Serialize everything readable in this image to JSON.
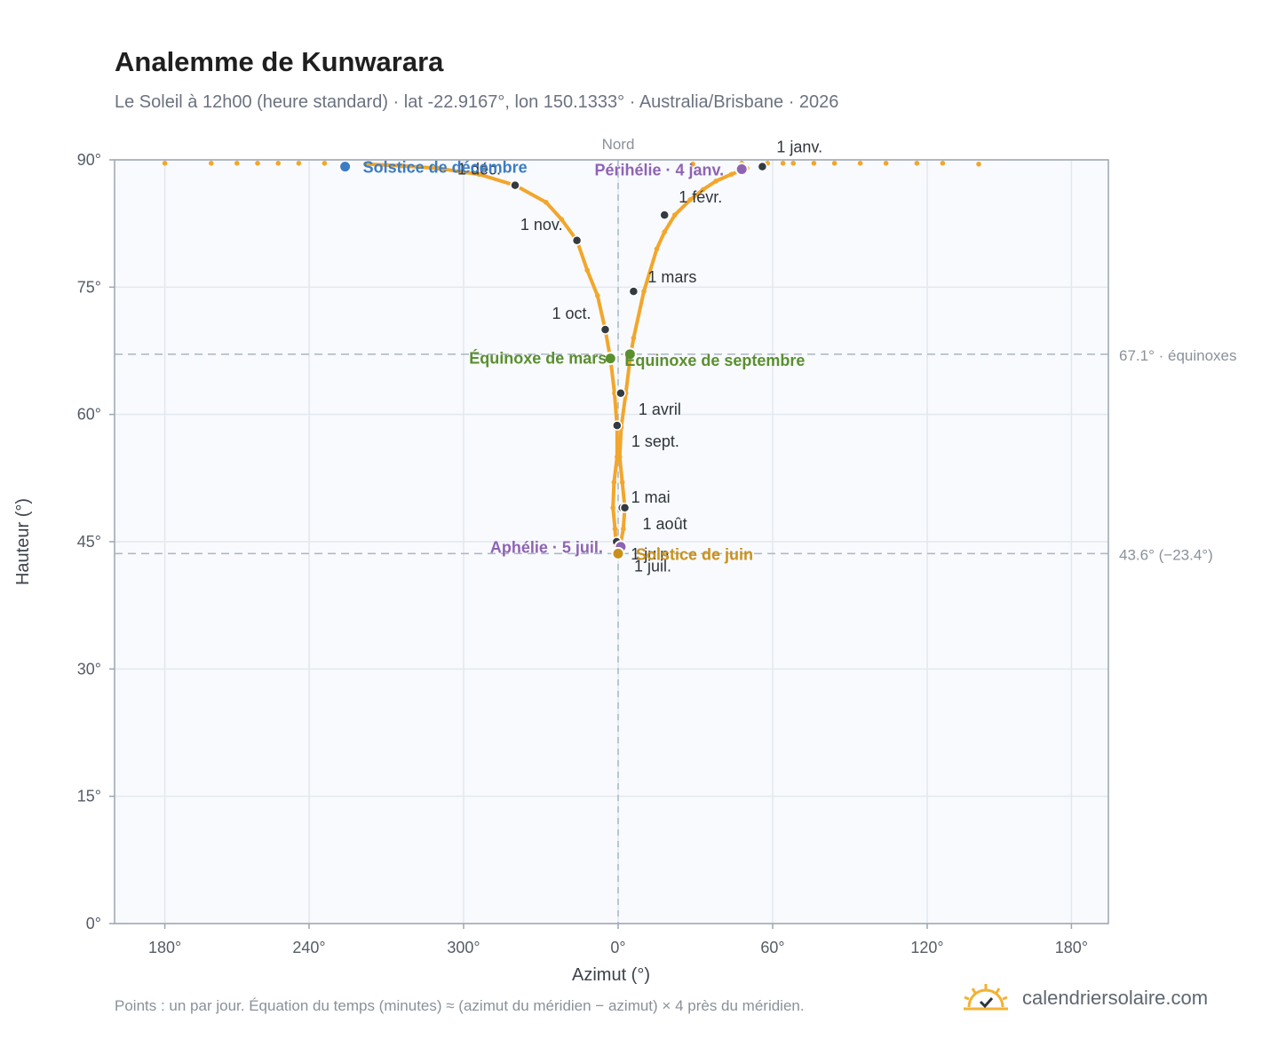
{
  "header": {
    "title": "Analemme de Kunwarara",
    "subtitle": "Le Soleil à 12h00 (heure standard) · lat -22.9167°, lon 150.1333° · Australia/Brisbane · 2026"
  },
  "footer": {
    "note": "Points : un par jour. Équation du temps (minutes) ≈ (azimut du méridien − azimut) × 4 près du méridien.",
    "brand": "calendriersolaire.com",
    "brand_icon": "sun-check-icon"
  },
  "colors": {
    "curve": "#f2a62b",
    "month_marker": "#343a40",
    "equinox": "#5a8f2e",
    "solstice_december": "#3b7cc4",
    "solstice_june": "#c9911b",
    "apsis": "#8e63b4",
    "plot_bg": "#f8fafd",
    "grid": "#e3e8ee",
    "reference_line": "#a9b7c4"
  },
  "chart_data": {
    "type": "scatter",
    "xlabel": "Azimut (°)",
    "ylabel": "Hauteur (°)",
    "xlim": [
      -90,
      90
    ],
    "ylim": [
      0,
      90
    ],
    "x_ticks": [
      {
        "value": -88,
        "label": "180°"
      },
      {
        "value": -60,
        "label": "240°"
      },
      {
        "value": -30,
        "label": "300°"
      },
      {
        "value": 0,
        "label": "0°"
      },
      {
        "value": 30,
        "label": "60°"
      },
      {
        "value": 60,
        "label": "120°"
      },
      {
        "value": 88,
        "label": "180°"
      }
    ],
    "y_ticks": [
      {
        "value": 0,
        "label": "0°"
      },
      {
        "value": 15,
        "label": "15°"
      },
      {
        "value": 30,
        "label": "30°"
      },
      {
        "value": 45,
        "label": "45°"
      },
      {
        "value": 60,
        "label": "60°"
      },
      {
        "value": 75,
        "label": "75°"
      },
      {
        "value": 90,
        "label": "90°"
      }
    ],
    "grid": true,
    "meridian": {
      "x": 0,
      "label": "Nord"
    },
    "reference_lines": [
      {
        "y": 67.1,
        "label": "67.1° · équinoxes"
      },
      {
        "y": 43.6,
        "label": "43.6° (−23.4°)"
      }
    ],
    "series": [
      {
        "points": [
          [
            14.5,
            89.5
          ],
          [
            24,
            89.6
          ],
          [
            29,
            89.6
          ],
          [
            32,
            89.6
          ],
          [
            34,
            89.6
          ],
          [
            38,
            89.6
          ],
          [
            42,
            89.6
          ],
          [
            47,
            89.6
          ],
          [
            52,
            89.6
          ],
          [
            58,
            89.6
          ],
          [
            63,
            89.6
          ],
          [
            70,
            89.5
          ],
          [
            25,
            89.0
          ],
          [
            22,
            88.3
          ],
          [
            19,
            87.5
          ],
          [
            16.5,
            86.5
          ],
          [
            14,
            85.3
          ],
          [
            11,
            83.5
          ],
          [
            9,
            81.5
          ],
          [
            7.5,
            79.5
          ],
          [
            5,
            74.5
          ],
          [
            3,
            69
          ],
          [
            2.3,
            66.5
          ],
          [
            1.5,
            62.5
          ],
          [
            0.6,
            58.5
          ],
          [
            0.3,
            55
          ],
          [
            0.8,
            52
          ],
          [
            1.3,
            49
          ],
          [
            1.0,
            46.5
          ],
          [
            0.4,
            44.5
          ],
          [
            0,
            43.6
          ],
          [
            -0.4,
            44.5
          ],
          [
            -0.6,
            46.5
          ],
          [
            -1,
            49
          ],
          [
            -0.8,
            52
          ],
          [
            -0.2,
            55
          ],
          [
            -0.2,
            58.5
          ],
          [
            -0.7,
            62.5
          ],
          [
            -1.5,
            66.6
          ],
          [
            -2.5,
            70
          ],
          [
            -4,
            74
          ],
          [
            -6,
            77
          ],
          [
            -8,
            80.5
          ],
          [
            -11,
            83
          ],
          [
            -14,
            85
          ],
          [
            -20,
            87
          ],
          [
            -27,
            88.3
          ],
          [
            -35,
            89
          ],
          [
            -42,
            89.3
          ],
          [
            -49,
            89.5
          ],
          [
            -53,
            89.6
          ],
          [
            -57,
            89.6
          ],
          [
            -62,
            89.6
          ],
          [
            -66,
            89.6
          ],
          [
            -70,
            89.6
          ],
          [
            -74,
            89.6
          ],
          [
            -79,
            89.6
          ],
          [
            -88,
            89.6
          ]
        ]
      }
    ],
    "month_markers": [
      {
        "label": "1 janv.",
        "x": 28,
        "y": 89.2
      },
      {
        "label": "1 févr.",
        "x": 9,
        "y": 83.5
      },
      {
        "label": "1 mars",
        "x": 3,
        "y": 74.5
      },
      {
        "label": "1 avril",
        "x": 0.5,
        "y": 62.5
      },
      {
        "label": "1 mai",
        "x": 0.8,
        "y": 49
      },
      {
        "label": "1 juin",
        "x": -0.3,
        "y": 45
      },
      {
        "label": "1 juil.",
        "x": 0,
        "y": 43.6
      },
      {
        "label": "1 août",
        "x": 1.3,
        "y": 49
      },
      {
        "label": "1 sept.",
        "x": -0.2,
        "y": 58.7
      },
      {
        "label": "1 oct.",
        "x": -2.5,
        "y": 70
      },
      {
        "label": "1 nov.",
        "x": -8,
        "y": 80.5
      },
      {
        "label": "1 déc.",
        "x": -20,
        "y": 87
      }
    ],
    "events": [
      {
        "label": "Solstice de décembre",
        "x": -53,
        "y": 89.2,
        "kind": "solstice_december"
      },
      {
        "label": "Périhélie · 4 janv.",
        "x": 24,
        "y": 88.9,
        "kind": "apsis"
      },
      {
        "label": "Équinoxe de mars",
        "x": -1.5,
        "y": 66.6,
        "kind": "equinox"
      },
      {
        "label": "Équinoxe de septembre",
        "x": 2.3,
        "y": 67.1,
        "kind": "equinox"
      },
      {
        "label": "Aphélie · 5 juil.",
        "x": 0.5,
        "y": 44.4,
        "kind": "apsis"
      },
      {
        "label": "Solstice de juin",
        "x": 0,
        "y": 43.6,
        "kind": "solstice_june"
      }
    ]
  }
}
